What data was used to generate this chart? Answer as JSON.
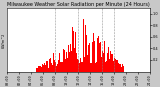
{
  "title": "Milwaukee Weather Solar Radiation per Minute (24 Hours)",
  "bar_color": "#FF0000",
  "background_color": "#FFFFFF",
  "outer_background": "#C8C8C8",
  "grid_color": "#888888",
  "num_points": 1440,
  "peak_value": 1.0,
  "ylim": [
    0,
    1.1
  ],
  "xlim": [
    0,
    1440
  ],
  "xtick_interval": 120,
  "ytick_values": [
    0.2,
    0.4,
    0.6,
    0.8,
    1.0
  ],
  "vline_positions": [
    480,
    720,
    960,
    1080
  ],
  "spine_color": "#000000",
  "title_fontsize": 3.5,
  "tick_fontsize": 2.5
}
